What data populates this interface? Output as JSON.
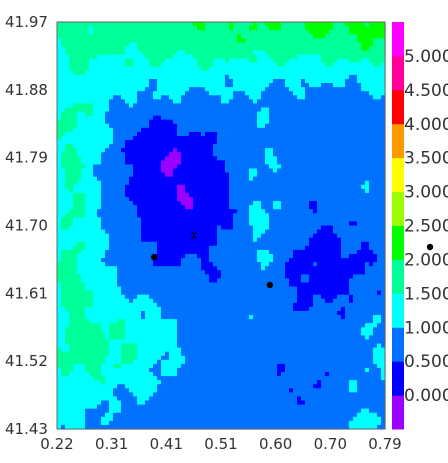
{
  "chart_data": {
    "type": "heatmap",
    "title": "",
    "xlabel": "",
    "ylabel": "",
    "xlim": [
      0.22,
      0.79
    ],
    "ylim": [
      41.43,
      41.97
    ],
    "x_ticks": [
      "0.22",
      "0.31",
      "0.41",
      "0.51",
      "0.60",
      "0.70",
      "0.79"
    ],
    "y_ticks": [
      "41.97",
      "41.88",
      "41.79",
      "41.70",
      "41.61",
      "41.52",
      "41.43"
    ],
    "colorbar": {
      "levels": [
        -0.5,
        0.0,
        0.5,
        1.0,
        1.5,
        2.0,
        2.5,
        3.0,
        3.5,
        4.0,
        4.5,
        5.0,
        5.5
      ],
      "labels": [
        "0.000",
        "0.500",
        "1.000",
        "1.500",
        "2.000",
        "2.500",
        "3.000",
        "3.500",
        "4.000",
        "4.500",
        "5.000"
      ],
      "colors": [
        "#9d00ff",
        "#0000ff",
        "#0072ff",
        "#00ffff",
        "#00ff99",
        "#00ff00",
        "#99ff00",
        "#ffff00",
        "#ff9900",
        "#ff0000",
        "#ff0099",
        "#ff00ff"
      ]
    },
    "markers": [
      {
        "type": "dot",
        "x": 0.389,
        "y": 41.658
      },
      {
        "type": "dot",
        "x": 0.59,
        "y": 41.621
      },
      {
        "type": "label",
        "x": 0.458,
        "y": 41.683,
        "text": "x"
      }
    ]
  }
}
